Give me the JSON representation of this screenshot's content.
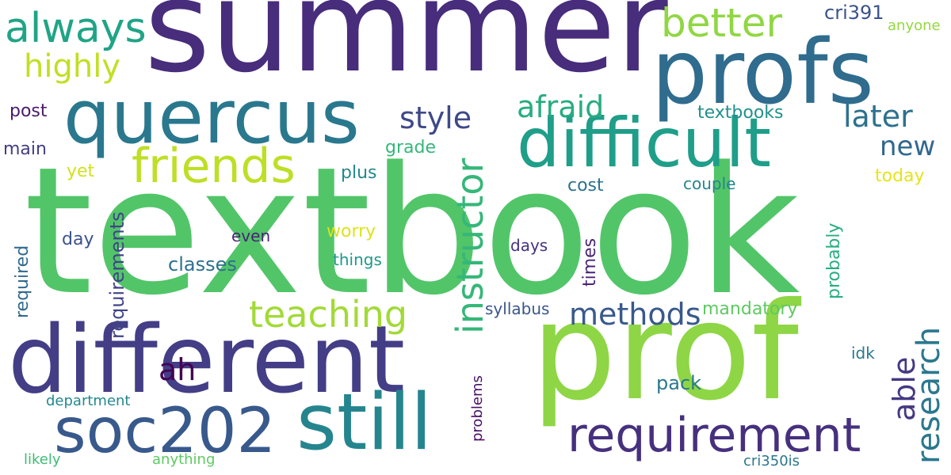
{
  "cloud": {
    "words": [
      {
        "text": "textbook",
        "color": "#52c569"
      },
      {
        "text": "summer",
        "color": "#472d7b"
      },
      {
        "text": "prof",
        "color": "#8ed645"
      },
      {
        "text": "profs",
        "color": "#2f6c8e"
      },
      {
        "text": "different",
        "color": "#433e85"
      },
      {
        "text": "quercus",
        "color": "#2a788e"
      },
      {
        "text": "difficult",
        "color": "#1f9e89"
      },
      {
        "text": "still",
        "color": "#25858e"
      },
      {
        "text": "soc202",
        "color": "#38598c"
      },
      {
        "text": "requirement",
        "color": "#46307e"
      },
      {
        "text": "friends",
        "color": "#bddf26"
      },
      {
        "text": "always",
        "color": "#20a486"
      },
      {
        "text": "better",
        "color": "#90d743"
      },
      {
        "text": "highly",
        "color": "#c2df23"
      },
      {
        "text": "instructor",
        "color": "#35b779"
      },
      {
        "text": "teaching",
        "color": "#a2da37"
      },
      {
        "text": "afraid",
        "color": "#27ad81"
      },
      {
        "text": "research",
        "color": "#2a788e"
      },
      {
        "text": "style",
        "color": "#3e4989"
      },
      {
        "text": "later",
        "color": "#2c728e"
      },
      {
        "text": "methods",
        "color": "#38598c"
      },
      {
        "text": "able",
        "color": "#453882"
      },
      {
        "text": "new",
        "color": "#31688e"
      },
      {
        "text": "ah",
        "color": "#440154"
      },
      {
        "text": "requirements",
        "color": "#414487"
      },
      {
        "text": "classes",
        "color": "#2d708e"
      },
      {
        "text": "cri391",
        "color": "#3b528b"
      },
      {
        "text": "textbooks",
        "color": "#21918c"
      },
      {
        "text": "post",
        "color": "#481b6d"
      },
      {
        "text": "main",
        "color": "#433e85"
      },
      {
        "text": "grade",
        "color": "#35b779"
      },
      {
        "text": "probably",
        "color": "#28ae80"
      },
      {
        "text": "times",
        "color": "#482576"
      },
      {
        "text": "mandatory",
        "color": "#5ec962"
      },
      {
        "text": "worry",
        "color": "#dde318"
      },
      {
        "text": "today",
        "color": "#e5e419"
      },
      {
        "text": "plus",
        "color": "#23888e"
      },
      {
        "text": "cost",
        "color": "#2c728e"
      },
      {
        "text": "yet",
        "color": "#d2e21b"
      },
      {
        "text": "day",
        "color": "#3b528b"
      },
      {
        "text": "required",
        "color": "#31688e"
      },
      {
        "text": "couple",
        "color": "#25848e"
      },
      {
        "text": "even",
        "color": "#482475"
      },
      {
        "text": "things",
        "color": "#1f988b"
      },
      {
        "text": "days",
        "color": "#46327e"
      },
      {
        "text": "pack",
        "color": "#2a788e"
      },
      {
        "text": "syllabus",
        "color": "#39568c"
      },
      {
        "text": "idk",
        "color": "#2a788e"
      },
      {
        "text": "problems",
        "color": "#471164"
      },
      {
        "text": "department",
        "color": "#23888e"
      },
      {
        "text": "anyone",
        "color": "#95d840"
      },
      {
        "text": "likely",
        "color": "#3dbc74"
      },
      {
        "text": "anything",
        "color": "#5ec962"
      },
      {
        "text": "cri350is",
        "color": "#2a778e"
      }
    ]
  }
}
